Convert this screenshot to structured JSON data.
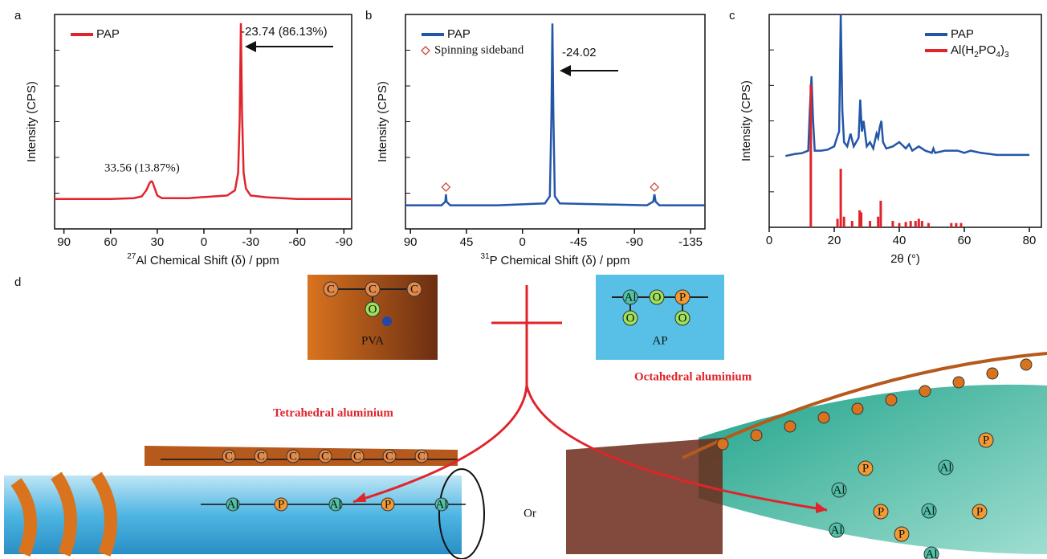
{
  "chart_data": [
    {
      "type": "line",
      "panel": "a",
      "ylabel": "Intensity (CPS)",
      "xlabel_sup": "27",
      "xlabel": "Al Chemical Shift (δ) / ppm",
      "xlim": [
        96,
        -95
      ],
      "xticks": [
        90,
        60,
        30,
        0,
        -30,
        -60,
        -90
      ],
      "ylim": [
        -0.17,
        1.05
      ],
      "legend": "upper left",
      "series": [
        {
          "name": "PAP",
          "color": "#e0242b",
          "x": [
            96,
            60,
            45,
            40,
            37,
            35,
            34,
            33.5,
            33,
            32,
            30,
            27,
            10,
            -15,
            -20,
            -22,
            -23,
            -23.74,
            -24.5,
            -25.5,
            -27,
            -30,
            -40,
            -60,
            -95
          ],
          "values": [
            0,
            0,
            0.005,
            0.015,
            0.05,
            0.09,
            0.1,
            0.1,
            0.095,
            0.07,
            0.02,
            0.005,
            0.005,
            0.02,
            0.05,
            0.15,
            0.45,
            1.0,
            0.5,
            0.15,
            0.06,
            0.02,
            0.01,
            0,
            0
          ]
        }
      ],
      "annotations": [
        "-23.74 (86.13%)",
        "33.56 (13.87%)"
      ]
    },
    {
      "type": "line",
      "panel": "b",
      "ylabel": "Intensity (CPS)",
      "xlabel_sup": "31",
      "xlabel": "P Chemical Shift (δ) / ppm",
      "xlim": [
        94,
        -146.6
      ],
      "xticks": [
        90,
        45,
        0,
        -45,
        -90,
        -135
      ],
      "ylim": [
        -0.13,
        1.05
      ],
      "legend": "upper left",
      "series": [
        {
          "name": "PAP",
          "color": "#2456a8",
          "x": [
            94,
            65,
            62,
            61.5,
            61,
            58,
            20,
            -18,
            -22,
            -23.3,
            -24.02,
            -24.8,
            -26,
            -30,
            -100,
            -105,
            -106,
            -107,
            -110,
            -146
          ],
          "values": [
            0,
            0,
            0.02,
            0.06,
            0.02,
            0,
            0,
            0.01,
            0.05,
            0.5,
            1.0,
            0.5,
            0.05,
            0.01,
            0,
            0.02,
            0.06,
            0.02,
            0,
            0
          ]
        }
      ],
      "markers": {
        "name": "Spinning sideband",
        "color": "#d0463c",
        "x": [
          61.5,
          -106
        ],
        "values": [
          0.1,
          0.1
        ]
      },
      "annotations": [
        "-24.02"
      ]
    },
    {
      "type": "line",
      "panel": "c",
      "ylabel": "Intensity (CPS)",
      "xlabel": "2θ (°)",
      "xlim": [
        0,
        83.7
      ],
      "xticks": [
        0,
        20,
        40,
        60,
        80
      ],
      "ylim": [
        0,
        1
      ],
      "legend": "upper right",
      "series": [
        {
          "name": "PAP",
          "color": "#2456a8",
          "x": [
            5,
            8,
            10,
            12,
            12.5,
            13,
            13.5,
            14,
            16,
            18,
            20,
            21,
            21.5,
            22,
            22.5,
            23,
            24,
            25,
            26,
            27.5,
            28,
            28.5,
            29,
            30,
            31,
            32,
            33,
            33.5,
            34,
            34.5,
            35,
            36,
            38,
            40,
            42,
            43,
            44,
            46,
            48,
            50,
            50.5,
            51,
            54,
            56,
            58,
            60,
            62,
            65,
            70,
            75,
            80
          ],
          "values": [
            0.335,
            0.345,
            0.348,
            0.36,
            0.55,
            0.71,
            0.5,
            0.36,
            0.36,
            0.365,
            0.38,
            0.43,
            0.45,
            1.0,
            0.55,
            0.4,
            0.38,
            0.44,
            0.38,
            0.42,
            0.6,
            0.45,
            0.5,
            0.38,
            0.4,
            0.37,
            0.44,
            0.42,
            0.47,
            0.5,
            0.4,
            0.37,
            0.38,
            0.4,
            0.37,
            0.39,
            0.36,
            0.38,
            0.36,
            0.35,
            0.37,
            0.35,
            0.36,
            0.36,
            0.36,
            0.35,
            0.36,
            0.35,
            0.34,
            0.34,
            0.34
          ]
        },
        {
          "name": "Al(H2PO4)3",
          "color": "#e0242b",
          "style": "stick",
          "x": [
            12.8,
            21,
            22,
            23,
            25.5,
            27.8,
            28.3,
            31,
            33.5,
            34.3,
            38,
            40,
            42,
            43.5,
            45,
            46,
            47,
            49,
            56,
            57.5,
            59
          ],
          "values": [
            0.67,
            0.04,
            0.275,
            0.05,
            0.03,
            0.08,
            0.07,
            0.03,
            0.05,
            0.125,
            0.03,
            0.02,
            0.025,
            0.03,
            0.03,
            0.04,
            0.03,
            0.02,
            0.02,
            0.02,
            0.02
          ]
        }
      ]
    }
  ],
  "diagram": {
    "panel": "d",
    "pva_box": {
      "label": "PVA",
      "atoms": [
        "C",
        "C",
        "C",
        "O"
      ]
    },
    "ap_box": {
      "label": "AP",
      "atoms": [
        "Al",
        "O",
        "P",
        "O",
        "O"
      ]
    },
    "left_label": "Tetrahedral aluminium",
    "right_label": "Octahedral aluminium",
    "or": "Or",
    "left_atoms": [
      "C",
      "C",
      "C",
      "C",
      "C",
      "C",
      "C",
      "Al",
      "P",
      "Al",
      "P",
      "Al"
    ],
    "right_atoms": [
      "P",
      "Al",
      "P",
      "Al",
      "P",
      "Al",
      "P",
      "Al",
      "P",
      "Al"
    ]
  }
}
